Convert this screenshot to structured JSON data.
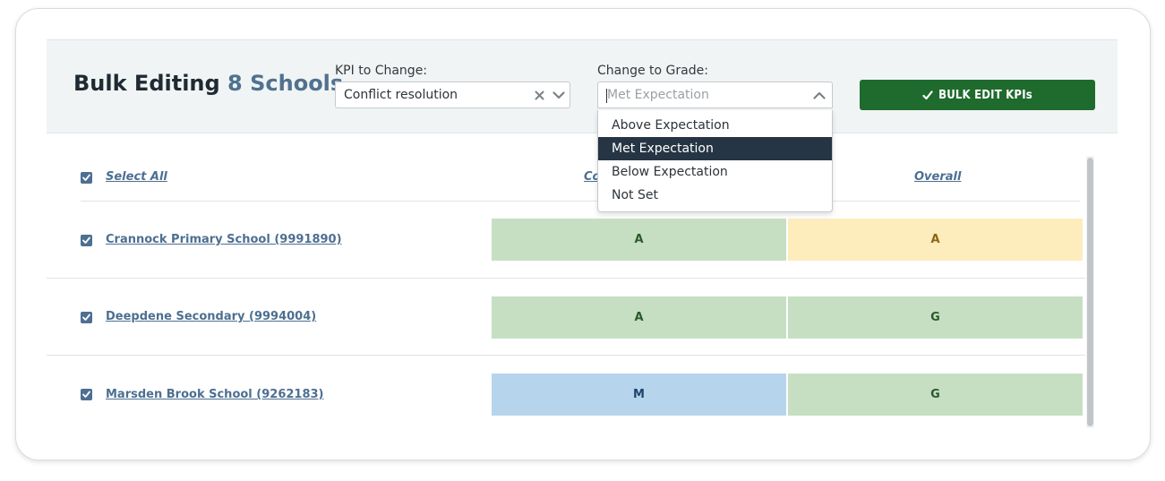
{
  "header": {
    "title_prefix": "Bulk Editing",
    "title_count": "8 Schools",
    "kpi_label": "KPI to Change:",
    "kpi_value": "Conflict resolution",
    "grade_label": "Change to Grade:",
    "grade_placeholder": "Met Expectation",
    "bulk_button_label": "BULK EDIT KPIs"
  },
  "dropdown": {
    "options": [
      "Above Expectation",
      "Met Expectation",
      "Below Expectation",
      "Not Set"
    ],
    "selected": "Met Expectation"
  },
  "table": {
    "select_all_label": "Select All",
    "col1_header_visible": "Co",
    "col2_header": "Overall",
    "rows": [
      {
        "name": "Crannock Primary School (9991890)",
        "kpi": "A",
        "overall": "A",
        "checked": true
      },
      {
        "name": "Deepdene Secondary (9994004)",
        "kpi": "A",
        "overall": "G",
        "checked": true
      },
      {
        "name": "Marsden Brook School (9262183)",
        "kpi": "M",
        "overall": "G",
        "checked": true
      }
    ]
  },
  "colors": {
    "green_cell": "#c6dfc3",
    "amber_cell": "#fdecbc",
    "blue_cell": "#b7d4ed",
    "button": "#1e6b2d",
    "accent": "#4d6f91",
    "selected_option": "#263544"
  }
}
